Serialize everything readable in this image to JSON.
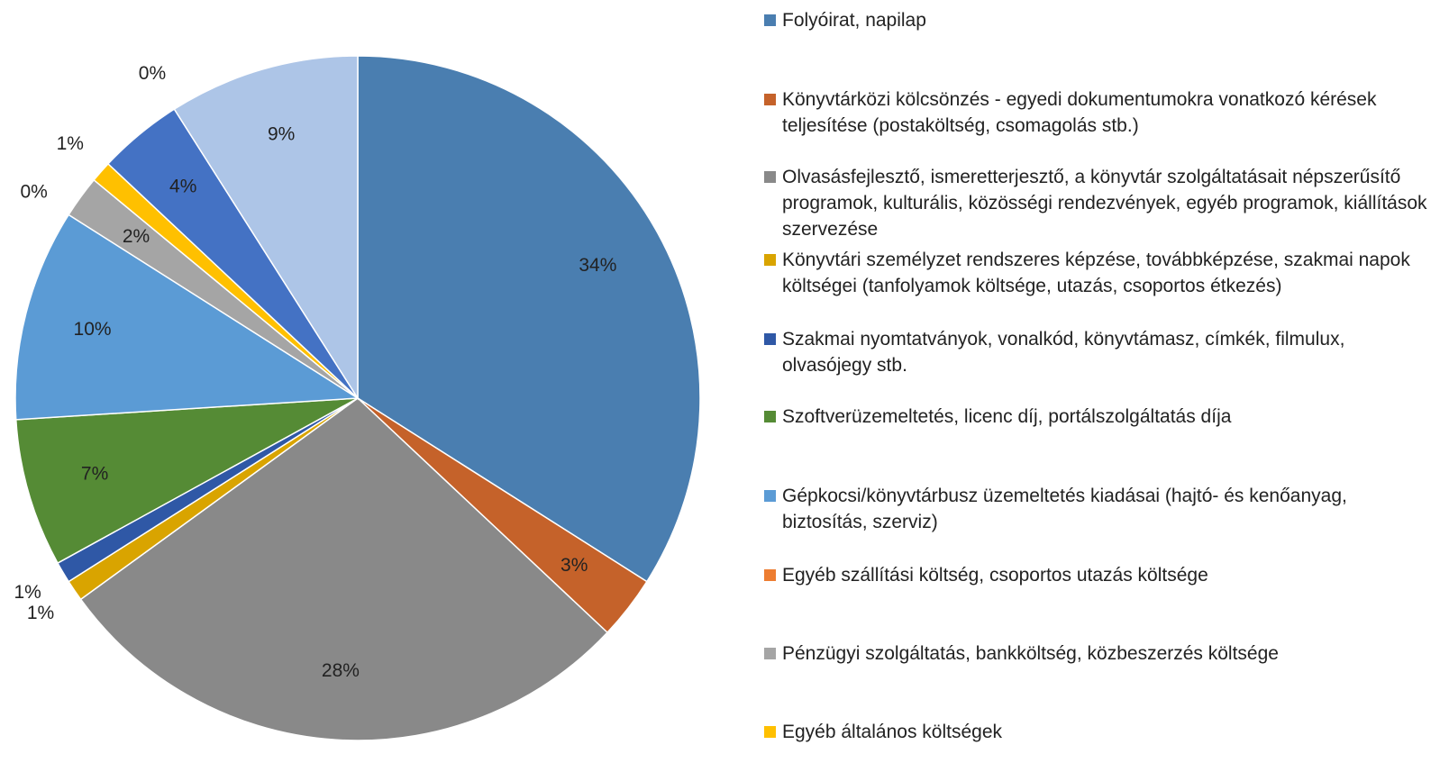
{
  "chart_data": {
    "type": "pie",
    "categories": [
      "Folyóirat, napilap",
      "Könyvtárközi kölcsönzés - egyedi dokumentumokra vonatkozó kérések teljesítése (postaköltség, csomagolás stb.)",
      "Olvasásfejlesztő, ismeretterjesztő, a könyvtár szolgáltatásait népszerűsítő programok, kulturális, közösségi rendezvények, egyéb programok, kiállítások szervezése",
      "Könyvtári személyzet rendszeres képzése, továbbképzése, szakmai napok költségei (tanfolyamok költsége, utazás, csoportos étkezés)",
      "Szakmai nyomtatványok, vonalkód, könyvtámasz, címkék, filmulux, olvasójegy stb.",
      "Szoftverüzemeltetés, licenc díj, portálszolgáltatás díja",
      "Gépkocsi/könyvtárbusz üzemeltetés kiadásai (hajtó- és kenőanyag, biztosítás, szerviz)",
      "Egyéb szállítási költség, csoportos utazás költsége",
      "Pénzügyi szolgáltatás, bankköltség, közbeszerzés költsége",
      "Egyéb általános költségek",
      null,
      null,
      null
    ],
    "values": [
      34,
      3,
      28,
      1,
      1,
      7,
      10,
      0,
      2,
      1,
      4,
      0,
      9
    ],
    "value_labels": [
      "34%",
      "3%",
      "28%",
      "1%",
      "1%",
      "7%",
      "10%",
      "0%",
      "2%",
      "1%",
      "4%",
      "0%",
      "9%"
    ],
    "colors": [
      "#4a7eb0",
      "#c5622a",
      "#898989",
      "#d9a400",
      "#2f58a6",
      "#558b35",
      "#5b9bd5",
      "#ed7d31",
      "#a5a5a5",
      "#ffc000",
      "#4472c4",
      "#70ad47",
      "#adc5e7"
    ]
  }
}
